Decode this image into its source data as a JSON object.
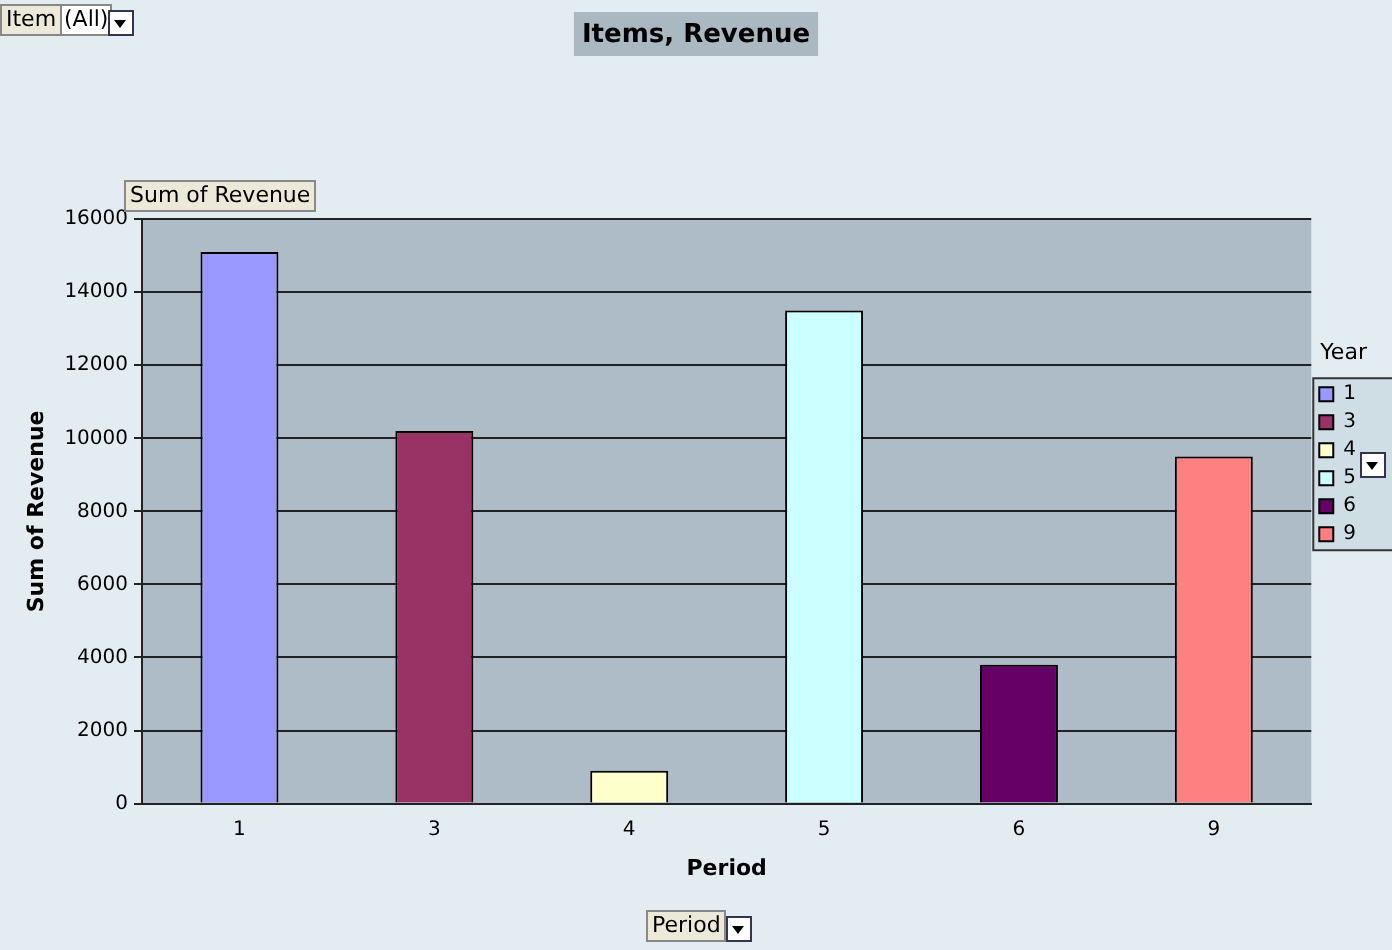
{
  "chart_data": {
    "type": "bar",
    "title": "Items, Revenue",
    "xlabel": "Period",
    "ylabel": "Sum of Revenue",
    "legend_title": "Year",
    "categories": [
      "1",
      "3",
      "4",
      "5",
      "6",
      "9"
    ],
    "series": [
      {
        "name": "1",
        "color": "#9999ff",
        "values": [
          15100,
          null,
          null,
          null,
          null,
          null
        ]
      },
      {
        "name": "3",
        "color": "#993366",
        "values": [
          null,
          10200,
          null,
          null,
          null,
          null
        ]
      },
      {
        "name": "4",
        "color": "#ffffcc",
        "values": [
          null,
          null,
          900,
          null,
          null,
          null
        ]
      },
      {
        "name": "5",
        "color": "#ccffff",
        "values": [
          null,
          null,
          null,
          13500,
          null,
          null
        ]
      },
      {
        "name": "6",
        "color": "#660066",
        "values": [
          null,
          null,
          null,
          null,
          3800,
          null
        ]
      },
      {
        "name": "9",
        "color": "#ff8080",
        "values": [
          null,
          null,
          null,
          null,
          null,
          9500
        ]
      }
    ],
    "ylim": [
      0,
      16000
    ],
    "yticks": [
      0,
      2000,
      4000,
      6000,
      8000,
      10000,
      12000,
      14000,
      16000
    ],
    "grid": "y",
    "legend": "right",
    "annotations": [
      "Item",
      "(All)",
      "Sum of Revenue",
      "Period"
    ]
  }
}
